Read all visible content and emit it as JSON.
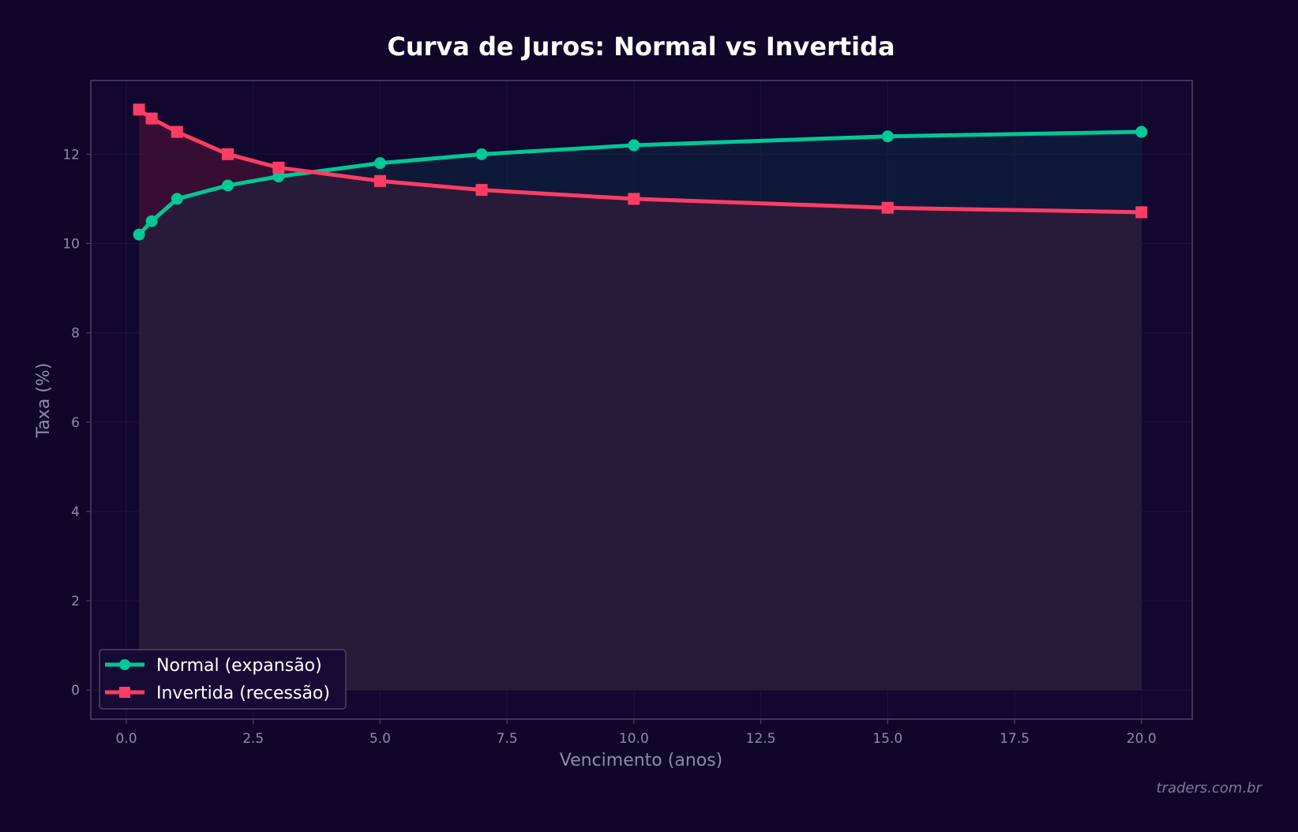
{
  "colors": {
    "background": "#10062a",
    "plot_border": "#4a4566",
    "grid": "#241c3e",
    "tick_text": "#8f8aa8",
    "title_text": "#ffffff",
    "normal_series": "#00c896",
    "inverted_series": "#ff3d64",
    "fill_between_spread": "#0f1a3a",
    "fill_inverted_area": "#2a1c3a",
    "fill_inversion_zone": "#3a0c34"
  },
  "watermark": "traders.com.br",
  "chart_data": {
    "type": "line",
    "title": "Curva de Juros: Normal vs Invertida",
    "xlabel": "Vencimento (anos)",
    "ylabel": "Taxa (%)",
    "xlim": [
      -0.7,
      21
    ],
    "ylim": [
      -0.65,
      13.65
    ],
    "xticks": [
      0.0,
      2.5,
      5.0,
      7.5,
      10.0,
      12.5,
      15.0,
      17.5,
      20.0
    ],
    "xtick_labels": [
      "0.0",
      "2.5",
      "5.0",
      "7.5",
      "10.0",
      "12.5",
      "15.0",
      "17.5",
      "20.0"
    ],
    "yticks": [
      0,
      2,
      4,
      6,
      8,
      10,
      12
    ],
    "ytick_labels": [
      "0",
      "2",
      "4",
      "6",
      "8",
      "10",
      "12"
    ],
    "grid": true,
    "legend_position": "lower-left",
    "x": [
      0.25,
      0.5,
      1,
      2,
      3,
      5,
      7,
      10,
      15,
      20
    ],
    "series": [
      {
        "name": "Normal (expansão)",
        "marker": "circle",
        "color": "#00c896",
        "values": [
          10.2,
          10.5,
          11.0,
          11.3,
          11.5,
          11.8,
          12.0,
          12.2,
          12.4,
          12.5
        ]
      },
      {
        "name": "Invertida (recessão)",
        "marker": "square",
        "color": "#ff3d64",
        "values": [
          13.0,
          12.8,
          12.5,
          12.0,
          11.7,
          11.4,
          11.2,
          11.0,
          10.8,
          10.7
        ]
      }
    ]
  }
}
